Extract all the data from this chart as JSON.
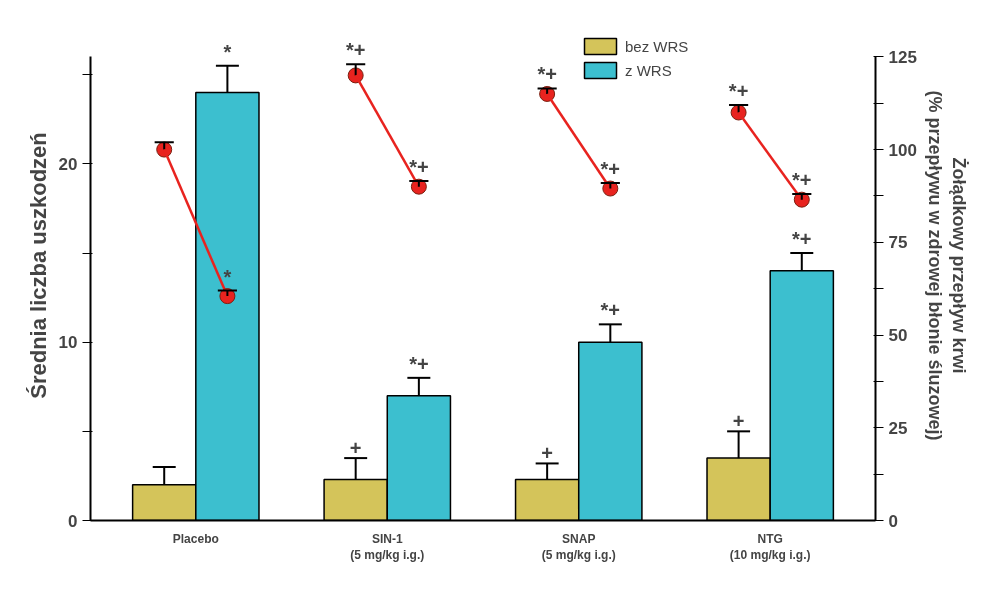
{
  "chart_data": {
    "type": "bar",
    "categories": [
      "Placebo",
      "SIN-1\n(5 mg/kg i.g.)",
      "SNAP\n(5 mg/kg i.g.)",
      "NTG\n(10 mg/kg i.g.)"
    ],
    "series": [
      {
        "name": "bez WRS",
        "color": "#d4c45a",
        "values": [
          2.0,
          2.3,
          2.3,
          3.5
        ],
        "errors": [
          [
            2.0,
            3.0
          ],
          [
            2.3,
            3.5
          ],
          [
            2.3,
            3.2
          ],
          [
            3.5,
            5.0
          ]
        ],
        "value_labels": [
          null,
          "+",
          "+",
          "+"
        ]
      },
      {
        "name": "z WRS",
        "color": "#3cbfcf",
        "values": [
          24.0,
          7.0,
          10.0,
          14.0
        ],
        "errors": [
          [
            24.0,
            25.5
          ],
          [
            7.0,
            8.0
          ],
          [
            10.0,
            11.0
          ],
          [
            14.0,
            15.0
          ]
        ],
        "value_labels": [
          "*",
          "*+",
          "*+",
          "*+"
        ]
      },
      {
        "type": "scatter",
        "axis": "y2",
        "color": "#e8231f",
        "values": [
          100,
          120,
          115,
          110
        ],
        "errors": [
          [
            100,
            102
          ],
          [
            120,
            123
          ],
          [
            115,
            116.5
          ],
          [
            110,
            112
          ]
        ],
        "value_labels": [
          null,
          "*+",
          "*+",
          "*+"
        ]
      },
      {
        "type": "scatter",
        "axis": "y2",
        "color": "#e8231f",
        "line_style": "solid",
        "values": [
          60.5,
          90,
          89.5,
          86.5
        ],
        "errors": [
          [
            60.5,
            62
          ],
          [
            90,
            91.5
          ],
          [
            89.5,
            91
          ],
          [
            86.5,
            88
          ]
        ],
        "value_labels": [
          "*",
          "*+",
          "*+",
          "*+"
        ]
      }
    ],
    "ylabel": "Średnia liczba uszkodzeń",
    "y2label": "Żołądkowy przepływ krwi\n(% przepływu w zdrowej błonie śluzowej)",
    "ylim": [
      0,
      26
    ],
    "yticks": [
      0,
      {
        "value": 5,
        "label": null
      },
      10,
      {
        "value": 15,
        "label": null
      },
      20,
      {
        "value": 25,
        "label": null
      }
    ],
    "y2lim": [
      0,
      125
    ],
    "y2ticks": [
      0,
      {
        "value": 12.5,
        "label": null
      },
      25,
      {
        "value": 37.5,
        "label": null
      },
      50,
      {
        "value": 62.5,
        "label": null
      },
      75,
      {
        "value": 87.5,
        "label": null
      },
      100,
      {
        "value": 112.5,
        "label": null
      },
      125
    ],
    "legend": "top",
    "grid": false,
    "marker": "circle"
  }
}
